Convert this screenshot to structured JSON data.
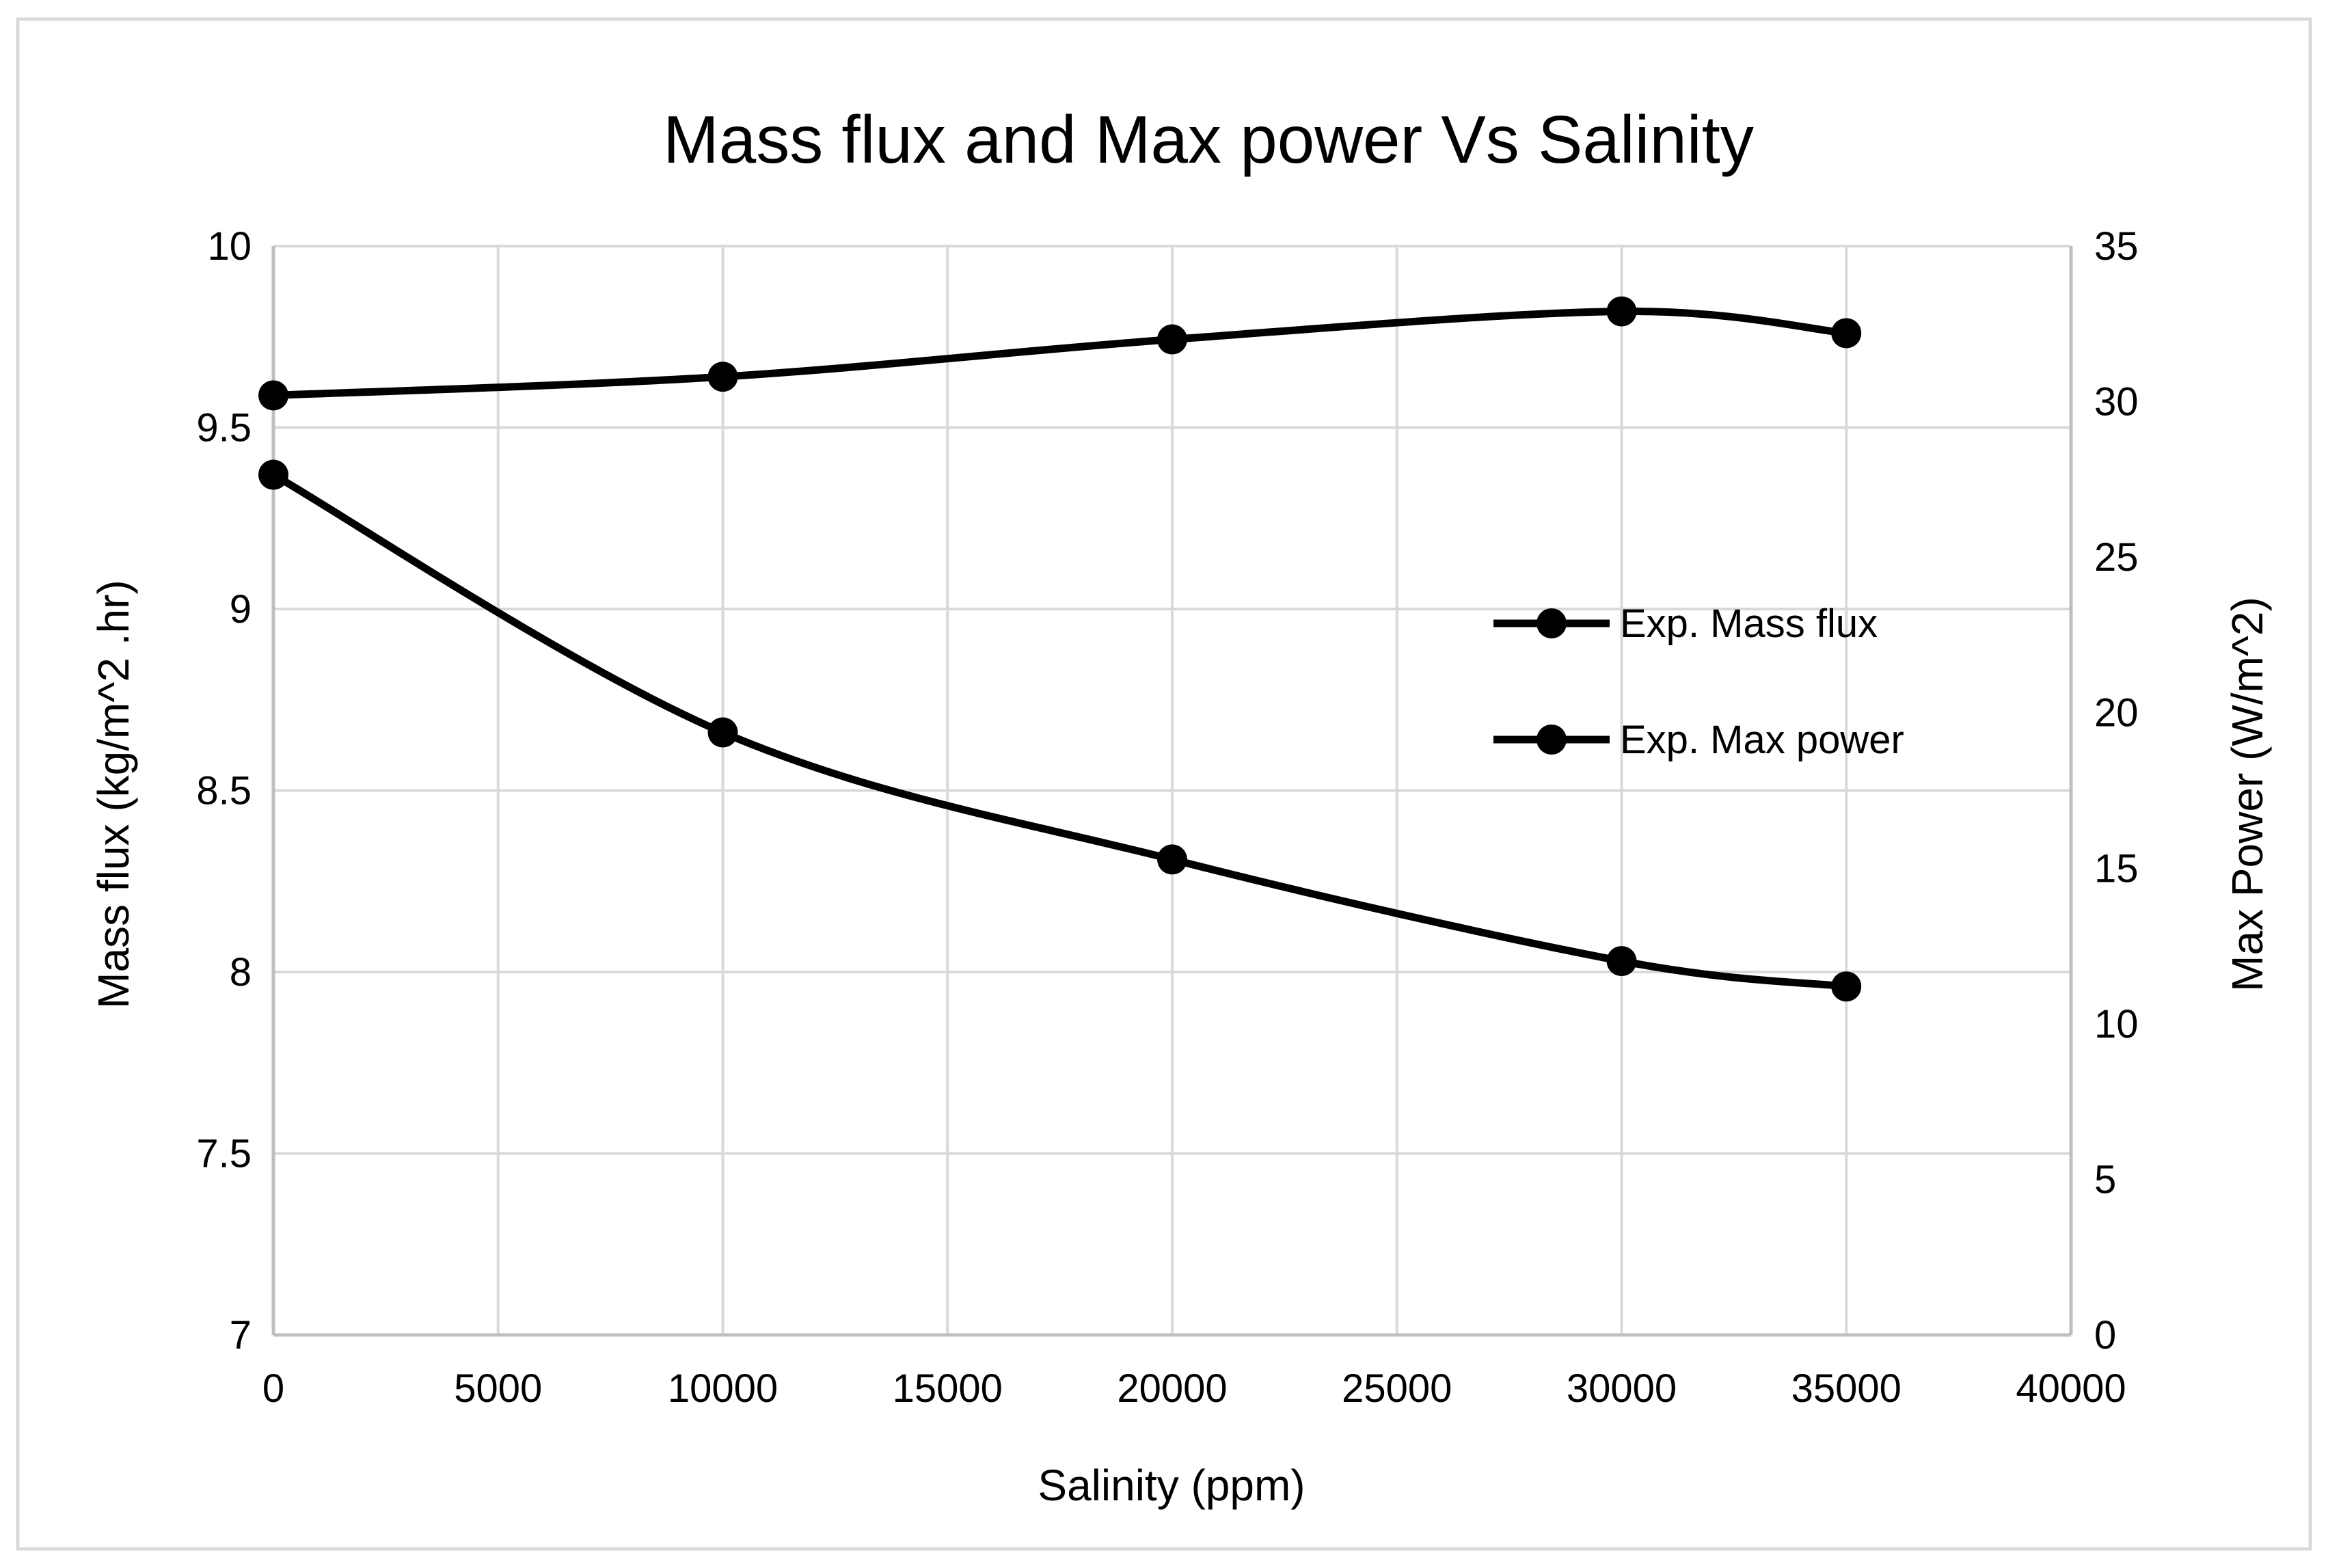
{
  "chart_data": {
    "type": "line",
    "title": "Mass flux and Max power Vs Salinity",
    "xlabel": "Salinity (ppm)",
    "ylabel": "Mass flux (kg/m^2 .hr)",
    "y2label": "Max Power (W/m^2)",
    "xlim": [
      0,
      40000
    ],
    "ylim": [
      7,
      10
    ],
    "y2lim": [
      0,
      35
    ],
    "x_ticks": [
      "0",
      "5000",
      "10000",
      "15000",
      "20000",
      "25000",
      "30000",
      "35000",
      "40000"
    ],
    "y_ticks": [
      "7",
      "7.5",
      "8",
      "8.5",
      "9",
      "9.5",
      "10"
    ],
    "y2_ticks": [
      "0",
      "5",
      "10",
      "15",
      "20",
      "25",
      "30",
      "35"
    ],
    "grid": true,
    "legend_position": "right",
    "colors": {
      "series": "#000000",
      "grid": "#d9d9d9",
      "axis": "#bfbfbf",
      "frame": "#d9d9d9"
    },
    "series": [
      {
        "name": "Exp. Mass flux",
        "axis": "left",
        "x": [
          0,
          10000,
          20000,
          30000,
          35000
        ],
        "values": [
          9.37,
          8.66,
          8.31,
          8.03,
          7.96
        ]
      },
      {
        "name": "Exp. Max power",
        "axis": "right",
        "x": [
          0,
          10000,
          20000,
          30000,
          35000
        ],
        "values": [
          30.2,
          30.8,
          32.0,
          32.9,
          32.2
        ]
      }
    ]
  }
}
